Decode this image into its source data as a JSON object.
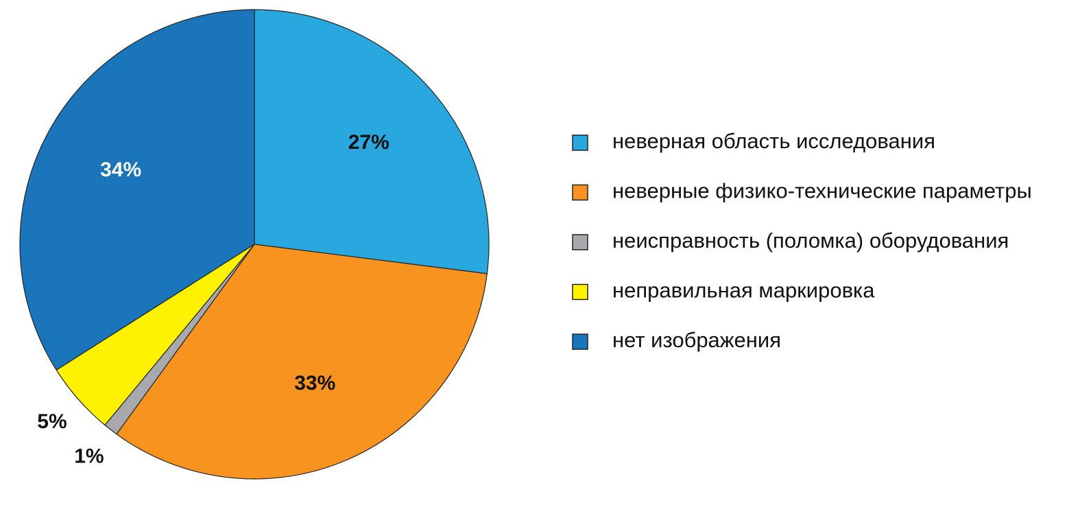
{
  "chart_data": {
    "type": "pie",
    "categories": [
      "неверная область исследования",
      "неверные физико-технические параметры",
      "неисправность (поломка) оборудования",
      "неправильная маркировка",
      "нет изображения"
    ],
    "values": [
      27,
      33,
      1,
      5,
      34
    ],
    "value_labels": [
      "27%",
      "33%",
      "1%",
      "5%",
      "34%"
    ],
    "colors": [
      "#29a8e0",
      "#f7931e",
      "#a7a9ac",
      "#fff200",
      "#1b75bb"
    ],
    "legend": "right"
  }
}
